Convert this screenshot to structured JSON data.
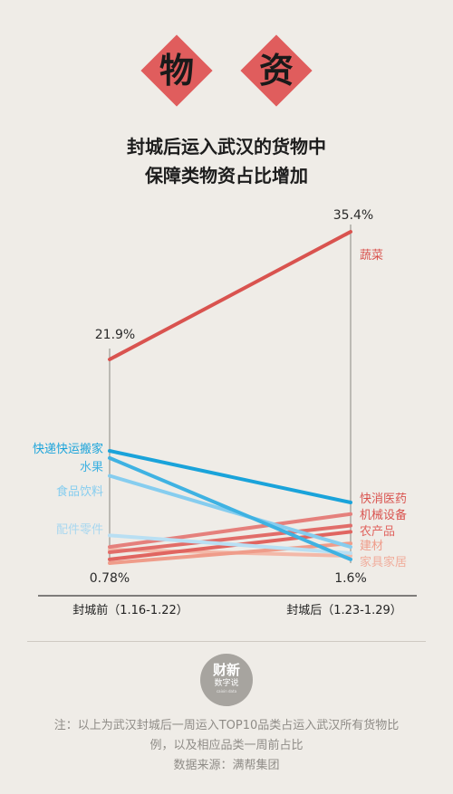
{
  "header": {
    "chars": [
      "物",
      "资"
    ]
  },
  "title": {
    "line1": "封城后运入武汉的货物中",
    "line2": "保障类物资占比增加"
  },
  "chart_data": {
    "type": "line",
    "x": [
      "封城前（1.16-1.22）",
      "封城后（1.23-1.29）"
    ],
    "ylim": [
      0,
      40
    ],
    "value_labels": {
      "top_left": "21.9%",
      "top_right": "35.4%",
      "bottom_left": "0.78%",
      "bottom_right": "1.6%"
    },
    "series": [
      {
        "name": "蔬菜",
        "values": [
          21.9,
          35.4
        ],
        "color": "#d9534f",
        "side": "right",
        "width": 4
      },
      {
        "name": "快递快运搬家",
        "values": [
          13.4,
          7.6
        ],
        "color": "#1aa3da",
        "side": "left",
        "width": 4
      },
      {
        "name": "水果",
        "values": [
          12.6,
          1.2
        ],
        "color": "#3fb2e2",
        "side": "left",
        "width": 4
      },
      {
        "name": "食品饮料",
        "values": [
          10.6,
          2.6
        ],
        "color": "#86cdef",
        "side": "left",
        "width": 4
      },
      {
        "name": "配件零件",
        "values": [
          3.9,
          1.9
        ],
        "color": "#b9dff3",
        "side": "left",
        "width": 4
      },
      {
        "name": "快消医药",
        "values": [
          2.6,
          6.3
        ],
        "color": "#e5807c",
        "side": "right",
        "width": 4
      },
      {
        "name": "机械设备",
        "values": [
          2.0,
          5.0
        ],
        "color": "#e16d69",
        "side": "right",
        "width": 4
      },
      {
        "name": "农产品",
        "values": [
          1.2,
          4.3
        ],
        "color": "#e06560",
        "side": "right",
        "width": 4
      },
      {
        "name": "建材",
        "values": [
          0.78,
          3.0
        ],
        "color": "#ef9c8a",
        "side": "right",
        "width": 4
      },
      {
        "name": "家具家居",
        "values": [
          2.3,
          1.6
        ],
        "color": "#f3b9a9",
        "side": "right",
        "width": 4
      }
    ],
    "label_colors": {
      "left": "#1aa3da"
    },
    "grid": false
  },
  "logo": {
    "line1": "财新",
    "line2": "数字说",
    "line3": "caixin data"
  },
  "note": {
    "line1": "注：以上为武汉封城后一周运入TOP10品类占运入武汉所有货物比",
    "line2": "例，以及相应品类一周前占比",
    "line3": "数据来源：满帮集团"
  }
}
